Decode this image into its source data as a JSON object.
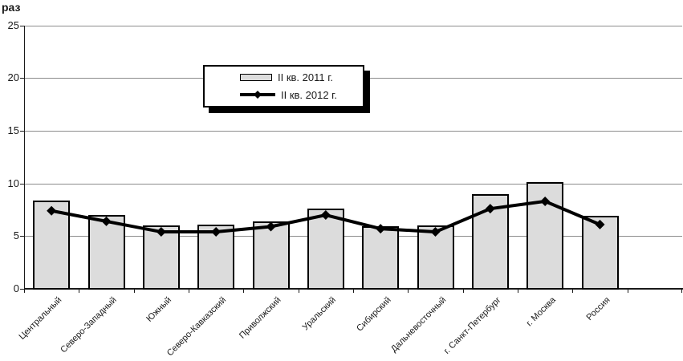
{
  "unit_label": "раз",
  "legend": {
    "items": [
      {
        "label": "II кв. 2011 г.",
        "swatch": "gray-bar"
      },
      {
        "label": "II кв. 2012 г.",
        "swatch": "black-line-diamond"
      }
    ]
  },
  "chart_data": {
    "type": "bar+line",
    "title": "",
    "ylabel": "раз",
    "categories": [
      "Центральный",
      "Северо-Западный",
      "Южный",
      "Северо-Кавказский",
      "Приволжский",
      "Уральский",
      "Сибирский",
      "Дальневосточный",
      "г. Санкт-Петербург",
      "г. Москва",
      "Россия"
    ],
    "series": [
      {
        "name": "II кв. 2011 г.",
        "type": "bar",
        "values": [
          8.4,
          7.0,
          6.0,
          6.1,
          6.4,
          7.6,
          5.9,
          6.0,
          9.0,
          10.1,
          6.9
        ]
      },
      {
        "name": "II кв. 2012 г.",
        "type": "line",
        "marker": "diamond",
        "values": [
          7.4,
          6.4,
          5.4,
          5.4,
          5.9,
          7.0,
          5.7,
          5.4,
          7.6,
          8.3,
          6.1
        ]
      }
    ],
    "ylim": [
      0,
      25
    ],
    "yticks": [
      0,
      5,
      10,
      15,
      20,
      25
    ],
    "grid": true,
    "legend_position": "top-center",
    "colors": {
      "bar_fill": "#dcdcdc",
      "bar_border": "#000000",
      "line": "#000000",
      "gridline": "#8c8c8c",
      "axis": "#1a1a1a",
      "background": "#ffffff"
    }
  }
}
